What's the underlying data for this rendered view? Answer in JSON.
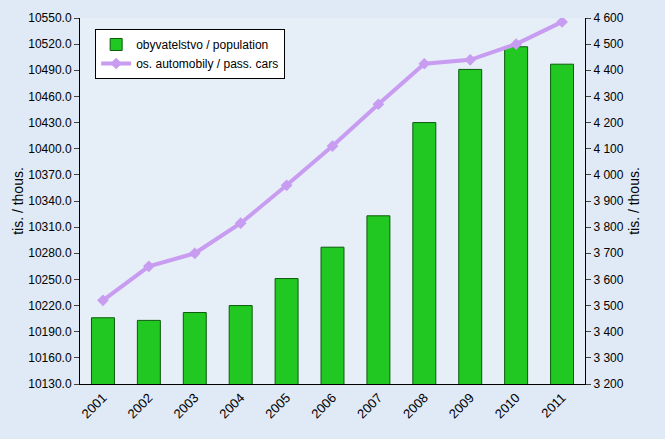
{
  "chart_data": {
    "type": "bar",
    "categories": [
      "2001",
      "2002",
      "2003",
      "2004",
      "2005",
      "2006",
      "2007",
      "2008",
      "2009",
      "2010",
      "2011"
    ],
    "series": [
      {
        "name": "obyvatelstvo / population",
        "type": "bar",
        "color": "#22c822",
        "values": [
          10206,
          10203,
          10212,
          10220,
          10251,
          10287,
          10323,
          10430,
          10491,
          10517,
          10497
        ]
      },
      {
        "name": "os. automobily / pass. cars",
        "type": "line",
        "axis": "y2",
        "color": "#c89cf0",
        "marker": "diamond",
        "values": [
          3520,
          3650,
          3700,
          3815,
          3960,
          4110,
          4270,
          4425,
          4440,
          4500,
          4585
        ]
      }
    ],
    "y_label": "tis. / thous.",
    "y2_label": "tis. / thous.",
    "ylim": [
      10130,
      10550
    ],
    "yticks": [
      {
        "value": 10130,
        "label": "10130.0"
      },
      {
        "value": 10160,
        "label": "10160.0"
      },
      {
        "value": 10190,
        "label": "10190.0"
      },
      {
        "value": 10220,
        "label": "10220.0"
      },
      {
        "value": 10250,
        "label": "10250.0"
      },
      {
        "value": 10280,
        "label": "10280.0"
      },
      {
        "value": 10310,
        "label": "10310.0"
      },
      {
        "value": 10340,
        "label": "10340.0"
      },
      {
        "value": 10370,
        "label": "10370.0"
      },
      {
        "value": 10400,
        "label": "10400.0"
      },
      {
        "value": 10430,
        "label": "10430.0"
      },
      {
        "value": 10460,
        "label": "10460.0"
      },
      {
        "value": 10490,
        "label": "10490.0"
      },
      {
        "value": 10520,
        "label": "10520.0"
      },
      {
        "value": 10550,
        "label": "10550.0"
      }
    ],
    "y2lim": [
      3200,
      4600
    ],
    "y2ticks": [
      {
        "value": 3200,
        "label": "3 200"
      },
      {
        "value": 3300,
        "label": "3 300"
      },
      {
        "value": 3400,
        "label": "3 400"
      },
      {
        "value": 3500,
        "label": "3 500"
      },
      {
        "value": 3600,
        "label": "3 600"
      },
      {
        "value": 3700,
        "label": "3 700"
      },
      {
        "value": 3800,
        "label": "3 800"
      },
      {
        "value": 3900,
        "label": "3 900"
      },
      {
        "value": 4000,
        "label": "4 000"
      },
      {
        "value": 4100,
        "label": "4 100"
      },
      {
        "value": 4200,
        "label": "4 200"
      },
      {
        "value": 4300,
        "label": "4 300"
      },
      {
        "value": 4400,
        "label": "4 400"
      },
      {
        "value": 4500,
        "label": "4 500"
      },
      {
        "value": 4600,
        "label": "4 600"
      }
    ],
    "grid": false,
    "legend": "upper left"
  }
}
